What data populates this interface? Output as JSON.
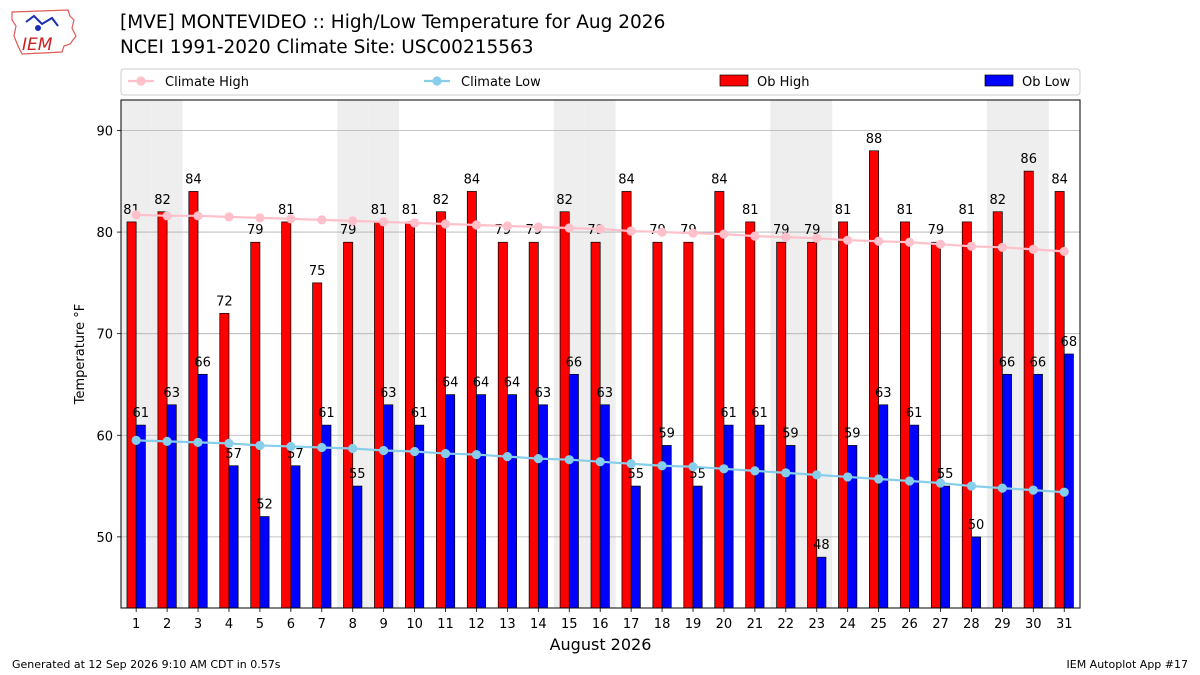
{
  "header": {
    "title_line1": "[MVE] MONTEVIDEO :: High/Low Temperature for Aug 2026",
    "title_line2": "NCEI 1991-2020 Climate Site: USC00215563",
    "logo_text": "IEM"
  },
  "footer": {
    "generated": "Generated at 12 Sep 2026 9:10 AM CDT in 0.57s",
    "app": "IEM Autoplot App #17"
  },
  "chart_data": {
    "type": "bar",
    "xlabel": "August 2026",
    "ylabel": "Temperature °F",
    "ylim": [
      43,
      93
    ],
    "yticks": [
      50,
      60,
      70,
      80,
      90
    ],
    "grid": true,
    "legend_position": "top",
    "categories": [
      "1",
      "2",
      "3",
      "4",
      "5",
      "6",
      "7",
      "8",
      "9",
      "10",
      "11",
      "12",
      "13",
      "14",
      "15",
      "16",
      "17",
      "18",
      "19",
      "20",
      "21",
      "22",
      "23",
      "24",
      "25",
      "26",
      "27",
      "28",
      "29",
      "30",
      "31"
    ],
    "weekend_days": [
      1,
      2,
      8,
      9,
      15,
      16,
      22,
      23,
      29,
      30
    ],
    "series": [
      {
        "name": "Ob High",
        "kind": "bar",
        "color": "#ff0000",
        "values": [
          81,
          82,
          84,
          72,
          79,
          81,
          75,
          79,
          81,
          81,
          82,
          84,
          79,
          79,
          82,
          79,
          84,
          79,
          79,
          84,
          81,
          79,
          79,
          81,
          88,
          81,
          79,
          81,
          82,
          86,
          84
        ]
      },
      {
        "name": "Ob Low",
        "kind": "bar",
        "color": "#0000ff",
        "values": [
          61,
          63,
          66,
          57,
          52,
          57,
          61,
          55,
          63,
          61,
          64,
          64,
          64,
          63,
          66,
          63,
          55,
          59,
          55,
          61,
          61,
          59,
          48,
          59,
          63,
          61,
          55,
          50,
          66,
          66,
          68
        ]
      },
      {
        "name": "Climate High",
        "kind": "line",
        "color": "#ffc0cb",
        "values": [
          81.7,
          81.6,
          81.6,
          81.5,
          81.4,
          81.3,
          81.2,
          81.1,
          81.0,
          80.9,
          80.8,
          80.7,
          80.6,
          80.5,
          80.4,
          80.3,
          80.1,
          80.0,
          79.9,
          79.8,
          79.6,
          79.5,
          79.4,
          79.2,
          79.1,
          79.0,
          78.8,
          78.6,
          78.5,
          78.3,
          78.1
        ]
      },
      {
        "name": "Climate Low",
        "kind": "line",
        "color": "#87ceeb",
        "values": [
          59.5,
          59.4,
          59.3,
          59.2,
          59.0,
          58.9,
          58.8,
          58.7,
          58.5,
          58.4,
          58.2,
          58.1,
          57.9,
          57.7,
          57.6,
          57.4,
          57.2,
          57.0,
          56.9,
          56.7,
          56.5,
          56.3,
          56.1,
          55.9,
          55.7,
          55.5,
          55.3,
          55.0,
          54.8,
          54.6,
          54.4
        ]
      }
    ]
  }
}
